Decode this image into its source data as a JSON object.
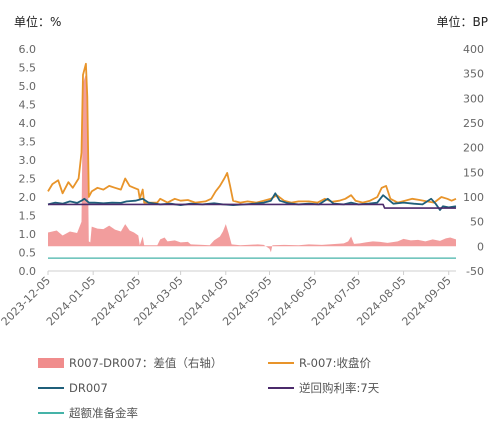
{
  "chart_data": {
    "type": "line",
    "left_unit": "单位：%",
    "right_unit": "单位：BP",
    "y_left": {
      "ticks": [
        "0.0",
        "0.5",
        "1.0",
        "1.5",
        "2.0",
        "2.5",
        "3.0",
        "3.5",
        "4.0",
        "4.5",
        "5.0",
        "5.5",
        "6.0"
      ],
      "range": [
        0,
        6
      ]
    },
    "y_right": {
      "ticks": [
        "-50",
        "0",
        "50",
        "100",
        "150",
        "200",
        "250",
        "300",
        "350",
        "400"
      ],
      "range": [
        -50,
        400
      ]
    },
    "x_ticks": [
      "2023-12-05",
      "2024-01-05",
      "2024-02-05",
      "2024-03-05",
      "2024-04-05",
      "2024-05-05",
      "2024-06-05",
      "2024-07-05",
      "2024-08-05",
      "2024-09-05"
    ],
    "x_range": [
      "2023-12-05",
      "2024-09-10"
    ],
    "grid": false,
    "legend_position": "bottom",
    "series": [
      {
        "name": "R007-DR007：差值（右轴）",
        "axis": "right",
        "kind": "area",
        "color": "#F08C8C",
        "points": [
          [
            "2023-12-05",
            28
          ],
          [
            "2023-12-11",
            32
          ],
          [
            "2023-12-15",
            22
          ],
          [
            "2023-12-20",
            30
          ],
          [
            "2023-12-25",
            27
          ],
          [
            "2023-12-28",
            50
          ],
          [
            "2023-12-29",
            330
          ],
          [
            "2023-12-31",
            350
          ],
          [
            "2024-01-01",
            270
          ],
          [
            "2024-01-02",
            10
          ],
          [
            "2024-01-03",
            8
          ],
          [
            "2024-01-04",
            40
          ],
          [
            "2024-01-08",
            36
          ],
          [
            "2024-01-12",
            35
          ],
          [
            "2024-01-16",
            42
          ],
          [
            "2024-01-20",
            34
          ],
          [
            "2024-01-24",
            30
          ],
          [
            "2024-01-27",
            45
          ],
          [
            "2024-01-30",
            32
          ],
          [
            "2024-02-02",
            28
          ],
          [
            "2024-02-05",
            22
          ],
          [
            "2024-02-06",
            2
          ],
          [
            "2024-02-08",
            20
          ],
          [
            "2024-02-09",
            2
          ],
          [
            "2024-02-18",
            2
          ],
          [
            "2024-02-20",
            14
          ],
          [
            "2024-02-23",
            18
          ],
          [
            "2024-02-25",
            10
          ],
          [
            "2024-03-01",
            12
          ],
          [
            "2024-03-05",
            8
          ],
          [
            "2024-03-10",
            9
          ],
          [
            "2024-03-12",
            4
          ],
          [
            "2024-03-20",
            3
          ],
          [
            "2024-03-25",
            2
          ],
          [
            "2024-03-28",
            12
          ],
          [
            "2024-04-01",
            20
          ],
          [
            "2024-04-03",
            30
          ],
          [
            "2024-04-05",
            45
          ],
          [
            "2024-04-07",
            26
          ],
          [
            "2024-04-09",
            4
          ],
          [
            "2024-04-15",
            2
          ],
          [
            "2024-04-20",
            3
          ],
          [
            "2024-04-27",
            4
          ],
          [
            "2024-05-01",
            3
          ],
          [
            "2024-05-05",
            -5
          ],
          [
            "2024-05-06",
            -12
          ],
          [
            "2024-05-07",
            2
          ],
          [
            "2024-05-15",
            3
          ],
          [
            "2024-05-25",
            2
          ],
          [
            "2024-06-01",
            4
          ],
          [
            "2024-06-10",
            3
          ],
          [
            "2024-06-20",
            5
          ],
          [
            "2024-06-25",
            6
          ],
          [
            "2024-06-28",
            10
          ],
          [
            "2024-06-30",
            20
          ],
          [
            "2024-07-02",
            5
          ],
          [
            "2024-07-06",
            6
          ],
          [
            "2024-07-10",
            8
          ],
          [
            "2024-07-15",
            10
          ],
          [
            "2024-07-20",
            9
          ],
          [
            "2024-07-25",
            7
          ],
          [
            "2024-08-01",
            10
          ],
          [
            "2024-08-05",
            15
          ],
          [
            "2024-08-10",
            12
          ],
          [
            "2024-08-15",
            13
          ],
          [
            "2024-08-20",
            10
          ],
          [
            "2024-08-25",
            14
          ],
          [
            "2024-08-30",
            11
          ],
          [
            "2024-09-03",
            16
          ],
          [
            "2024-09-06",
            18
          ],
          [
            "2024-09-10",
            14
          ]
        ]
      },
      {
        "name": "R-007:收盘价",
        "axis": "left",
        "kind": "line",
        "color": "#E8942A",
        "points": [
          [
            "2023-12-05",
            2.15
          ],
          [
            "2023-12-08",
            2.35
          ],
          [
            "2023-12-12",
            2.45
          ],
          [
            "2023-12-15",
            2.1
          ],
          [
            "2023-12-19",
            2.4
          ],
          [
            "2023-12-22",
            2.25
          ],
          [
            "2023-12-26",
            2.5
          ],
          [
            "2023-12-28",
            3.2
          ],
          [
            "2023-12-29",
            5.3
          ],
          [
            "2023-12-31",
            5.6
          ],
          [
            "2024-01-01",
            4.7
          ],
          [
            "2024-01-02",
            2.0
          ],
          [
            "2024-01-04",
            2.15
          ],
          [
            "2024-01-08",
            2.25
          ],
          [
            "2024-01-12",
            2.2
          ],
          [
            "2024-01-16",
            2.3
          ],
          [
            "2024-01-20",
            2.25
          ],
          [
            "2024-01-24",
            2.2
          ],
          [
            "2024-01-27",
            2.5
          ],
          [
            "2024-01-30",
            2.3
          ],
          [
            "2024-02-02",
            2.25
          ],
          [
            "2024-02-05",
            2.2
          ],
          [
            "2024-02-06",
            1.95
          ],
          [
            "2024-02-08",
            2.2
          ],
          [
            "2024-02-09",
            1.85
          ],
          [
            "2024-02-18",
            1.85
          ],
          [
            "2024-02-20",
            1.95
          ],
          [
            "2024-02-25",
            1.85
          ],
          [
            "2024-03-01",
            1.95
          ],
          [
            "2024-03-05",
            1.9
          ],
          [
            "2024-03-10",
            1.92
          ],
          [
            "2024-03-15",
            1.85
          ],
          [
            "2024-03-22",
            1.88
          ],
          [
            "2024-03-26",
            1.95
          ],
          [
            "2024-03-29",
            2.15
          ],
          [
            "2024-04-01",
            2.3
          ],
          [
            "2024-04-04",
            2.5
          ],
          [
            "2024-04-06",
            2.65
          ],
          [
            "2024-04-08",
            2.3
          ],
          [
            "2024-04-10",
            1.9
          ],
          [
            "2024-04-15",
            1.85
          ],
          [
            "2024-04-20",
            1.88
          ],
          [
            "2024-04-26",
            1.85
          ],
          [
            "2024-05-01",
            1.9
          ],
          [
            "2024-05-06",
            1.95
          ],
          [
            "2024-05-10",
            2.05
          ],
          [
            "2024-05-15",
            1.9
          ],
          [
            "2024-05-20",
            1.85
          ],
          [
            "2024-05-25",
            1.88
          ],
          [
            "2024-06-01",
            1.88
          ],
          [
            "2024-06-07",
            1.85
          ],
          [
            "2024-06-12",
            1.95
          ],
          [
            "2024-06-17",
            1.87
          ],
          [
            "2024-06-22",
            1.9
          ],
          [
            "2024-06-26",
            1.95
          ],
          [
            "2024-06-30",
            2.05
          ],
          [
            "2024-07-03",
            1.9
          ],
          [
            "2024-07-08",
            1.85
          ],
          [
            "2024-07-13",
            1.9
          ],
          [
            "2024-07-18",
            2.0
          ],
          [
            "2024-07-21",
            2.25
          ],
          [
            "2024-07-24",
            2.3
          ],
          [
            "2024-07-27",
            1.95
          ],
          [
            "2024-08-01",
            1.85
          ],
          [
            "2024-08-06",
            1.9
          ],
          [
            "2024-08-11",
            1.95
          ],
          [
            "2024-08-16",
            1.92
          ],
          [
            "2024-08-21",
            1.88
          ],
          [
            "2024-08-26",
            1.85
          ],
          [
            "2024-08-31",
            2.0
          ],
          [
            "2024-09-04",
            1.95
          ],
          [
            "2024-09-07",
            1.9
          ],
          [
            "2024-09-10",
            1.95
          ]
        ]
      },
      {
        "name": "DR007",
        "axis": "left",
        "kind": "line",
        "color": "#1F5F7A",
        "points": [
          [
            "2023-12-05",
            1.8
          ],
          [
            "2023-12-10",
            1.85
          ],
          [
            "2023-12-15",
            1.82
          ],
          [
            "2023-12-20",
            1.88
          ],
          [
            "2023-12-25",
            1.84
          ],
          [
            "2023-12-28",
            1.9
          ],
          [
            "2023-12-30",
            1.95
          ],
          [
            "2024-01-02",
            1.85
          ],
          [
            "2024-01-06",
            1.85
          ],
          [
            "2024-01-12",
            1.83
          ],
          [
            "2024-01-18",
            1.85
          ],
          [
            "2024-01-24",
            1.84
          ],
          [
            "2024-01-28",
            1.88
          ],
          [
            "2024-02-03",
            1.9
          ],
          [
            "2024-02-08",
            1.95
          ],
          [
            "2024-02-12",
            1.85
          ],
          [
            "2024-02-20",
            1.8
          ],
          [
            "2024-02-27",
            1.82
          ],
          [
            "2024-03-05",
            1.78
          ],
          [
            "2024-03-12",
            1.82
          ],
          [
            "2024-03-20",
            1.8
          ],
          [
            "2024-03-28",
            1.83
          ],
          [
            "2024-04-03",
            1.8
          ],
          [
            "2024-04-10",
            1.78
          ],
          [
            "2024-04-18",
            1.8
          ],
          [
            "2024-04-25",
            1.82
          ],
          [
            "2024-05-01",
            1.85
          ],
          [
            "2024-05-06",
            1.9
          ],
          [
            "2024-05-09",
            2.1
          ],
          [
            "2024-05-12",
            1.9
          ],
          [
            "2024-05-18",
            1.83
          ],
          [
            "2024-05-25",
            1.8
          ],
          [
            "2024-06-01",
            1.82
          ],
          [
            "2024-06-08",
            1.8
          ],
          [
            "2024-06-14",
            1.95
          ],
          [
            "2024-06-18",
            1.82
          ],
          [
            "2024-06-25",
            1.8
          ],
          [
            "2024-06-30",
            1.85
          ],
          [
            "2024-07-05",
            1.8
          ],
          [
            "2024-07-12",
            1.82
          ],
          [
            "2024-07-18",
            1.85
          ],
          [
            "2024-07-22",
            2.05
          ],
          [
            "2024-07-25",
            1.95
          ],
          [
            "2024-07-29",
            1.82
          ],
          [
            "2024-08-05",
            1.85
          ],
          [
            "2024-08-12",
            1.82
          ],
          [
            "2024-08-18",
            1.8
          ],
          [
            "2024-08-24",
            1.95
          ],
          [
            "2024-08-27",
            1.82
          ],
          [
            "2024-08-30",
            1.65
          ],
          [
            "2024-09-01",
            1.75
          ],
          [
            "2024-09-05",
            1.72
          ],
          [
            "2024-09-10",
            1.75
          ]
        ]
      },
      {
        "name": "逆回购利率:7天",
        "axis": "left",
        "kind": "line",
        "color": "#4B2A6B",
        "points": [
          [
            "2023-12-05",
            1.8
          ],
          [
            "2024-07-22",
            1.8
          ],
          [
            "2024-07-23",
            1.7
          ],
          [
            "2024-09-10",
            1.7
          ]
        ]
      },
      {
        "name": "超额准备金率",
        "axis": "left",
        "kind": "line",
        "color": "#45B3A8",
        "points": [
          [
            "2023-12-05",
            0.35
          ],
          [
            "2024-09-10",
            0.35
          ]
        ]
      }
    ]
  }
}
